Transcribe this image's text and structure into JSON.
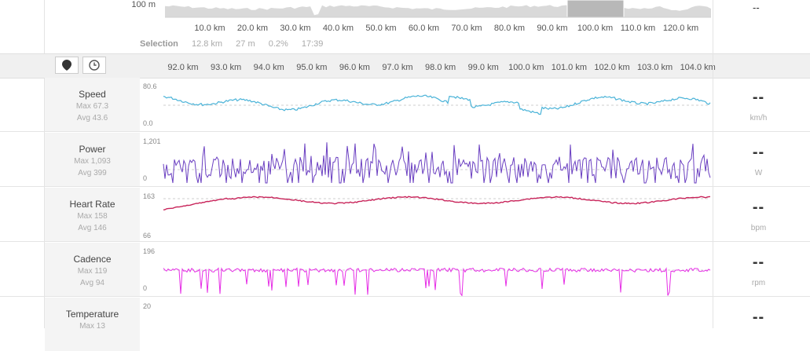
{
  "overview": {
    "elevation_label": "100 m",
    "right_value": "--",
    "km_ticks": [
      "10.0 km",
      "20.0 km",
      "30.0 km",
      "40.0 km",
      "50.0 km",
      "60.0 km",
      "70.0 km",
      "80.0 km",
      "90.0 km",
      "100.0 km",
      "110.0 km",
      "120.0 km"
    ],
    "selection": {
      "label": "Selection",
      "distance": "12.8 km",
      "elevation": "27 m",
      "grade": "0.2%",
      "time": "17:39"
    }
  },
  "toolbar": {
    "pin_icon": "map-pin-icon",
    "clock_icon": "clock-icon",
    "km_ticks": [
      "92.0 km",
      "93.0 km",
      "94.0 km",
      "95.0 km",
      "96.0 km",
      "97.0 km",
      "98.0 km",
      "99.0 km",
      "100.0 km",
      "101.0 km",
      "102.0 km",
      "103.0 km",
      "104.0 km"
    ]
  },
  "colors": {
    "speed": "#4ab3d8",
    "power": "#6a3fc1",
    "heart_rate": "#c8245a",
    "cadence": "#e62ee6"
  },
  "streams": {
    "speed": {
      "title": "Speed",
      "max": "Max 67.3",
      "avg": "Avg 43.6",
      "ymax": "80.6",
      "ymin": "0.0",
      "value": "--",
      "unit": "km/h"
    },
    "power": {
      "title": "Power",
      "max": "Max 1,093",
      "avg": "Avg 399",
      "ymax": "1,201",
      "ymin": "0",
      "value": "--",
      "unit": "W"
    },
    "heart_rate": {
      "title": "Heart Rate",
      "max": "Max 158",
      "avg": "Avg 146",
      "ymax": "163",
      "ymin": "66",
      "value": "--",
      "unit": "bpm"
    },
    "cadence": {
      "title": "Cadence",
      "max": "Max 119",
      "avg": "Avg 94",
      "ymax": "196",
      "ymin": "0",
      "value": "--",
      "unit": "rpm"
    },
    "temperature": {
      "title": "Temperature",
      "max": "Max 13",
      "ymax": "20",
      "value": "--"
    }
  }
}
